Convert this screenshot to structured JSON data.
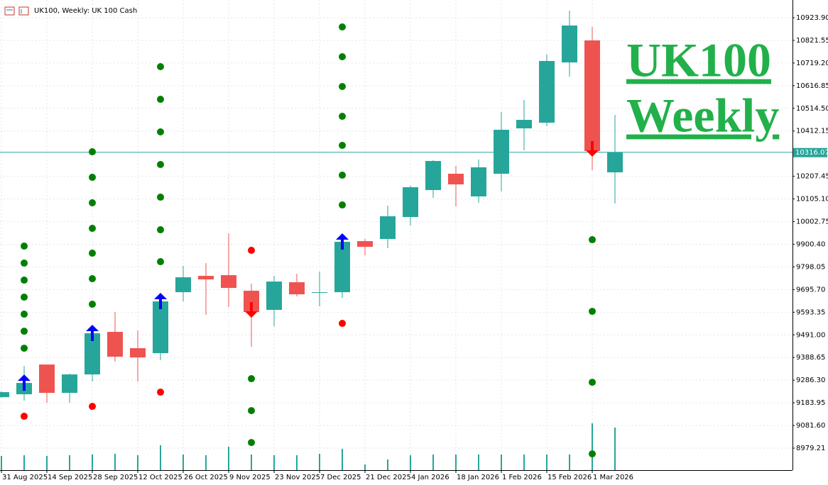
{
  "chart_data": {
    "type": "candlestick",
    "title": "UK100, Weekly: UK 100 Cash",
    "categories": [
      "31 Aug 2025",
      null,
      "14 Sep 2025",
      null,
      "28 Sep 2025",
      null,
      "12 Oct 2025",
      null,
      "26 Oct 2025",
      null,
      "9 Nov 2025",
      null,
      "23 Nov 2025",
      null,
      "7 Dec 2025",
      null,
      "21 Dec 2025",
      null,
      "4 Jan 2026",
      null,
      "18 Jan 2026",
      null,
      "1 Feb 2026",
      null,
      "15 Feb 2026",
      null,
      "1 Mar 2026",
      null
    ],
    "open": [
      9209.8,
      9222.6,
      9357.1,
      9229.0,
      9312.3,
      9504.5,
      9430.8,
      9408.4,
      9683.9,
      9757.6,
      9760.8,
      9690.4,
      9603.9,
      9728.8,
      9680.7,
      9683.9,
      9914.6,
      9924.3,
      10023.6,
      10145.3,
      10219.0,
      10116.5,
      10219.0,
      10424.1,
      10449.7,
      10722.0,
      10821.4,
      10225.4
    ],
    "high": [
      9235.4,
      9350.7,
      9357.1,
      9315.5,
      9514.1,
      9594.2,
      9510.9,
      9664.7,
      9802.5,
      9815.3,
      9949.9,
      9722.4,
      9757.6,
      9767.3,
      9776.9,
      9930.7,
      9924.3,
      10074.8,
      10164.6,
      10279.9,
      10254.3,
      10283.1,
      10497.8,
      10552.2,
      10757.3,
      10955.9,
      10882.2,
      10485.0
    ],
    "low": [
      9206.6,
      9193.7,
      9184.1,
      9184.1,
      9280.2,
      9370.0,
      9280.2,
      9376.4,
      9642.3,
      9581.4,
      9616.7,
      9437.2,
      9530.2,
      9664.7,
      9619.9,
      9658.3,
      9850.6,
      9882.6,
      9985.1,
      10110.1,
      10071.6,
      10087.7,
      10138.9,
      10324.8,
      10433.7,
      10657.9,
      10235.0,
      10084.5
    ],
    "close": [
      9232.2,
      9273.8,
      9229.0,
      9312.3,
      9498.1,
      9392.4,
      9389.2,
      9642.3,
      9751.2,
      9741.6,
      9703.2,
      9594.2,
      9732.0,
      9674.3,
      9683.9,
      9911.4,
      9889.0,
      10026.8,
      10158.1,
      10276.7,
      10171.0,
      10247.9,
      10417.7,
      10462.5,
      10728.5,
      10888.7,
      10321.5,
      10316.07
    ],
    "up_color": "#26a69a",
    "down_color": "#ef5350",
    "volume": [
      20,
      21,
      20,
      21,
      22,
      23,
      21,
      35,
      22,
      21,
      33,
      22,
      21,
      21,
      23,
      30,
      8,
      15,
      21,
      22,
      22,
      22,
      22,
      22,
      22,
      22,
      66,
      60
    ],
    "volume_color": "#26a69a",
    "ylim": [
      8880,
      11004
    ],
    "yticks": [
      {
        "value": 10923.9,
        "label": "10923.90"
      },
      10821.55,
      {
        "value": 10719.2,
        "label": "10719.20"
      },
      10616.85,
      {
        "value": 10514.5,
        "label": "10514.50"
      },
      10412.15,
      10207.45,
      {
        "value": 10105.1,
        "label": "10105.10"
      },
      10002.75,
      {
        "value": 9900.4,
        "label": "9900.40"
      },
      9798.05,
      {
        "value": 9695.7,
        "label": "9695.70"
      },
      9593.35,
      {
        "value": 9491,
        "label": "9491.00"
      },
      9388.65,
      {
        "value": 9286.3,
        "label": "9286.30"
      },
      9183.95,
      {
        "value": 9081.6,
        "label": "9081.60"
      },
      8979.21
    ],
    "current_price": {
      "value": 10316.07,
      "color": "#26a69a"
    },
    "grid": true,
    "signals": [
      {
        "index": 1,
        "direction": "up",
        "levels": [
          9892.2,
          9815.3,
          9738.4,
          9661.5,
          9584.6,
          9507.7,
          9430.8
        ],
        "stop": 9123.3
      },
      {
        "index": 4,
        "direction": "up",
        "levels": [
          10318.3,
          10203.0,
          10087.7,
          9972.3,
          9860.2,
          9744.8,
          9629.5
        ],
        "stop": 9168.1
      },
      {
        "index": 7,
        "direction": "up",
        "levels": [
          10702.8,
          10555.4,
          10408.1,
          10260.7,
          10113.3,
          9965.9,
          9821.7
        ],
        "stop": 9232.2
      },
      {
        "index": 11,
        "direction": "down",
        "levels": [
          9293.1,
          9148.9,
          9004.7
        ],
        "stop": 9873.0
      },
      {
        "index": 15,
        "direction": "up",
        "levels": [
          10882.2,
          10747.7,
          10613.1,
          10478.5,
          10347.2,
          10212.6,
          10078.0
        ],
        "stop": 9543.0
      },
      {
        "index": 26,
        "direction": "down",
        "levels": [
          9921.0,
          9597.4,
          9277.0,
          8953.4
        ]
      }
    ],
    "signal_colors": {
      "up": "#0000ff",
      "down": "#ff0000",
      "level": "#008000",
      "stop": "#ff0000"
    },
    "annotations": [
      "UK100",
      "Weekly"
    ],
    "annotation_color": "#22b04a"
  }
}
